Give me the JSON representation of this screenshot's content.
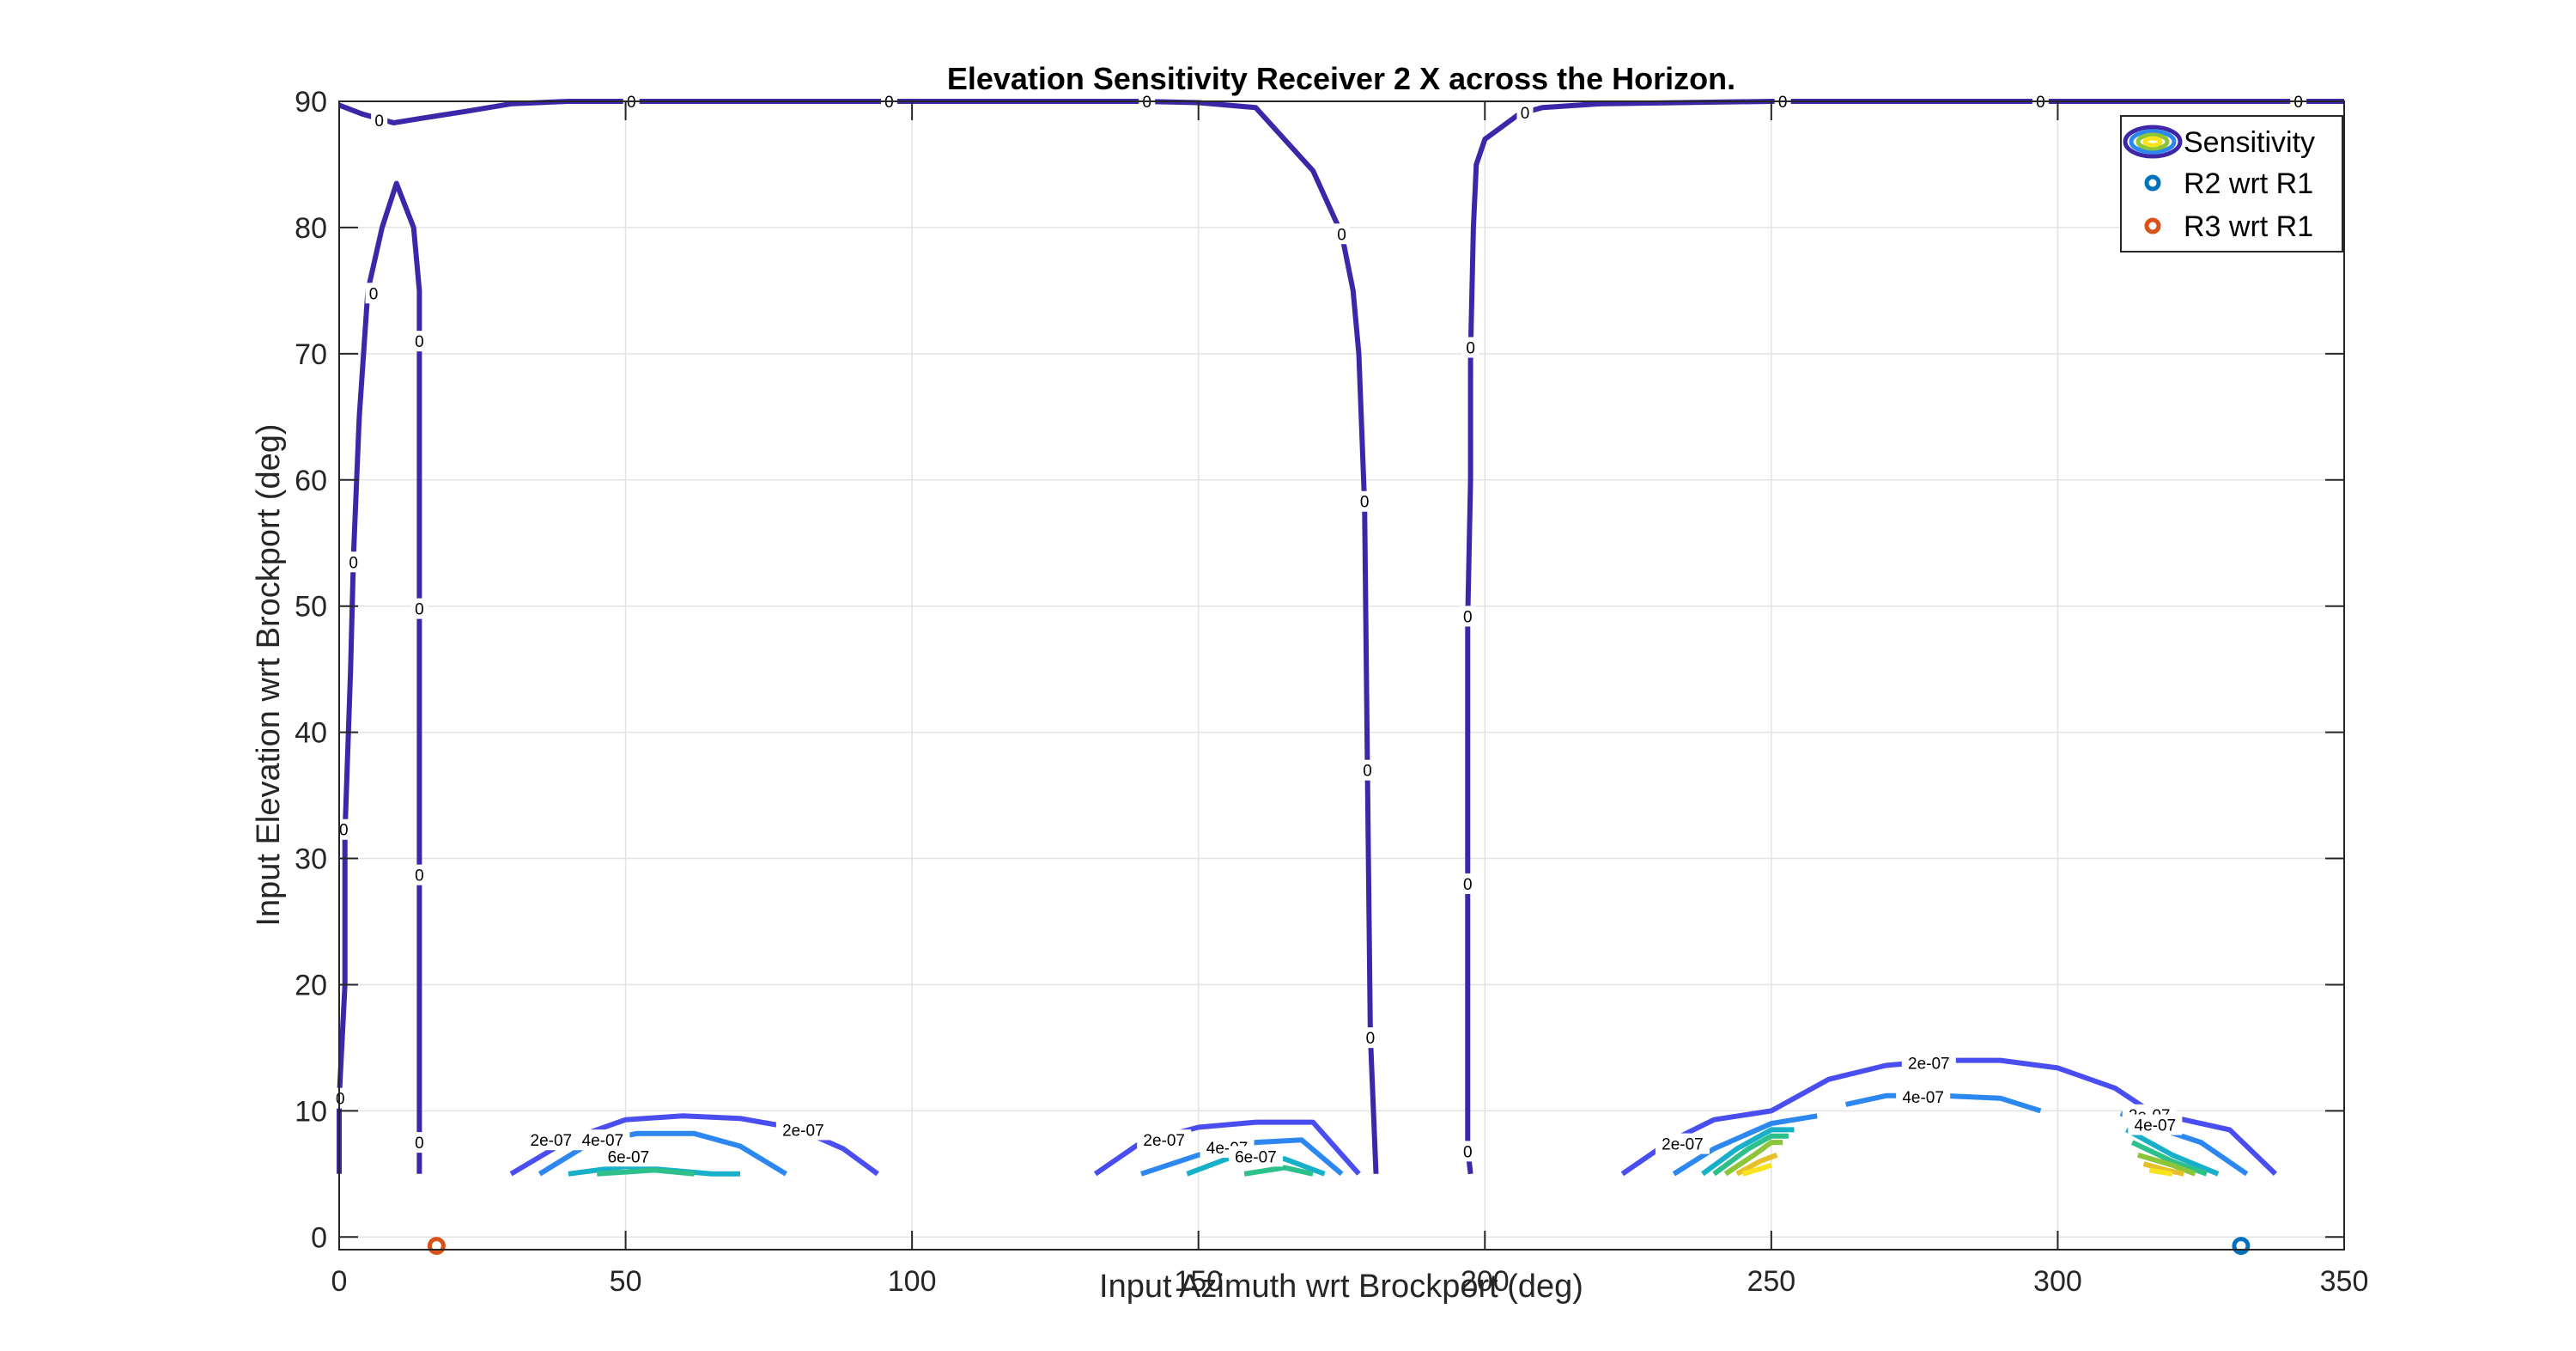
{
  "chart_data": {
    "type": "contour",
    "title": "Elevation Sensitivity Receiver 2 X across the Horizon.",
    "xlabel": "Input Azimuth wrt Brockport (deg)",
    "ylabel": "Input Elevation wrt Brockport (deg)",
    "xlim": [
      0,
      350
    ],
    "ylim": [
      -1,
      90
    ],
    "xticks": [
      0,
      50,
      100,
      150,
      200,
      250,
      300,
      350
    ],
    "yticks": [
      0,
      10,
      20,
      30,
      40,
      50,
      60,
      70,
      80,
      90
    ],
    "grid": true,
    "legend_position": "top-right",
    "legend": [
      {
        "label": "Sensitivity",
        "kind": "contour"
      },
      {
        "label": "R2 wrt R1",
        "kind": "marker",
        "color": "#0072BD"
      },
      {
        "label": "R3 wrt R1",
        "kind": "marker",
        "color": "#D95319"
      }
    ],
    "contour_levels": [
      {
        "value": 0,
        "label": "0",
        "color": "#3E26A8"
      },
      {
        "value": 2e-07,
        "label": "2e-07",
        "color": "#4A4EF0"
      },
      {
        "value": 4e-07,
        "label": "4e-07",
        "color": "#2C88F0"
      },
      {
        "value": 6e-07,
        "label": "6e-07",
        "color": "#18B0C8"
      },
      {
        "value": 8e-07,
        "label": "",
        "color": "#2DC08A"
      },
      {
        "value": 1e-06,
        "label": "",
        "color": "#8CC43A"
      },
      {
        "value": 1.2e-06,
        "label": "",
        "color": "#E6C02A"
      },
      {
        "value": 1.4e-06,
        "label": "",
        "color": "#F9E21E"
      }
    ],
    "contours": [
      {
        "level": 0,
        "points": [
          [
            0,
            5
          ],
          [
            0,
            11
          ],
          [
            1,
            20
          ],
          [
            1,
            32
          ],
          [
            2,
            45
          ],
          [
            2.5,
            54
          ],
          [
            3.5,
            65
          ],
          [
            5,
            75
          ],
          [
            7.5,
            80
          ],
          [
            10,
            83.5
          ],
          [
            13,
            80
          ],
          [
            14,
            75
          ],
          [
            14,
            71
          ],
          [
            14,
            60
          ],
          [
            14,
            50
          ],
          [
            14,
            40
          ],
          [
            14,
            28.5
          ],
          [
            14,
            20
          ],
          [
            14,
            10
          ],
          [
            14,
            7.5
          ],
          [
            14,
            5
          ]
        ]
      },
      {
        "level": 0,
        "points": [
          [
            0,
            89.7
          ],
          [
            4,
            89
          ],
          [
            9.5,
            88.3
          ],
          [
            15,
            88.7
          ],
          [
            22,
            89.2
          ],
          [
            30,
            89.8
          ],
          [
            40,
            90
          ],
          [
            60,
            90
          ],
          [
            100,
            90
          ],
          [
            140,
            90
          ],
          [
            150,
            89.9
          ],
          [
            160,
            89.5
          ],
          [
            170,
            84.5
          ],
          [
            175,
            79.5
          ],
          [
            177,
            75
          ],
          [
            178,
            70
          ],
          [
            179,
            58
          ],
          [
            179.5,
            37
          ],
          [
            180,
            16
          ],
          [
            181,
            5
          ]
        ]
      },
      {
        "level": 0,
        "points": [
          [
            197.5,
            5
          ],
          [
            197,
            7
          ],
          [
            197,
            11
          ],
          [
            197,
            20
          ],
          [
            197,
            28
          ],
          [
            197,
            40
          ],
          [
            197,
            49
          ],
          [
            197.5,
            60
          ],
          [
            197.5,
            70
          ],
          [
            198,
            80
          ],
          [
            198.5,
            85
          ],
          [
            200,
            87
          ],
          [
            203,
            88
          ],
          [
            206,
            89
          ],
          [
            210,
            89.5
          ],
          [
            220,
            89.8
          ],
          [
            250,
            90
          ],
          [
            300,
            90
          ],
          [
            350,
            90
          ]
        ]
      },
      {
        "level": 2e-07,
        "points": [
          [
            30,
            5
          ],
          [
            40,
            7.7
          ],
          [
            50,
            9.3
          ],
          [
            60,
            9.6
          ],
          [
            70,
            9.4
          ],
          [
            80,
            8.6
          ],
          [
            88,
            7
          ],
          [
            94,
            5
          ]
        ]
      },
      {
        "level": 4e-07,
        "points": [
          [
            35,
            5
          ],
          [
            44,
            7.5
          ],
          [
            52,
            8.2
          ],
          [
            62,
            8.2
          ],
          [
            70,
            7.2
          ],
          [
            78,
            5
          ]
        ]
      },
      {
        "level": 6e-07,
        "points": [
          [
            40,
            5
          ],
          [
            50,
            5.6
          ],
          [
            60,
            5.2
          ],
          [
            65,
            5
          ],
          [
            70,
            5
          ]
        ]
      },
      {
        "level": 8e-07,
        "points": [
          [
            45,
            5
          ],
          [
            55,
            5.3
          ],
          [
            62,
            5
          ]
        ]
      },
      {
        "level": 2e-07,
        "points": [
          [
            132,
            5
          ],
          [
            140,
            7.5
          ],
          [
            150,
            8.7
          ],
          [
            160,
            9.1
          ],
          [
            170,
            9.1
          ],
          [
            178,
            5
          ]
        ]
      },
      {
        "level": 4e-07,
        "points": [
          [
            140,
            5
          ],
          [
            150,
            6.5
          ],
          [
            160,
            7.5
          ],
          [
            168,
            7.7
          ],
          [
            175,
            5
          ]
        ]
      },
      {
        "level": 6e-07,
        "points": [
          [
            148,
            5
          ],
          [
            155,
            6.2
          ],
          [
            165,
            6.2
          ],
          [
            172,
            5
          ]
        ]
      },
      {
        "level": 8e-07,
        "points": [
          [
            158,
            5
          ],
          [
            165,
            5.5
          ],
          [
            170,
            5
          ]
        ]
      },
      {
        "level": 2e-07,
        "points": [
          [
            224,
            5
          ],
          [
            232,
            7.5
          ],
          [
            240,
            9.3
          ],
          [
            250,
            10
          ],
          [
            260,
            12.5
          ],
          [
            270,
            13.6
          ],
          [
            280,
            14
          ],
          [
            290,
            14
          ],
          [
            300,
            13.4
          ],
          [
            310,
            11.8
          ],
          [
            315,
            10.3
          ],
          [
            320,
            9.5
          ],
          [
            330,
            8.5
          ],
          [
            338,
            5
          ]
        ]
      },
      {
        "level": 4e-07,
        "points": [
          [
            233,
            5
          ],
          [
            240,
            7
          ],
          [
            250,
            9
          ],
          [
            258,
            9.6
          ]
        ]
      },
      {
        "level": 4e-07,
        "points": [
          [
            263,
            10.5
          ],
          [
            270,
            11.2
          ],
          [
            280,
            11.2
          ],
          [
            290,
            11
          ],
          [
            297,
            10
          ]
        ]
      },
      {
        "level": 4e-07,
        "points": [
          [
            311,
            9.8
          ],
          [
            317,
            8.7
          ],
          [
            325,
            7.5
          ],
          [
            333,
            5
          ]
        ]
      },
      {
        "level": 6e-07,
        "points": [
          [
            238,
            5
          ],
          [
            244,
            7
          ],
          [
            250,
            8.5
          ],
          [
            254,
            8.5
          ]
        ]
      },
      {
        "level": 6e-07,
        "points": [
          [
            312,
            8.5
          ],
          [
            320,
            6.5
          ],
          [
            328,
            5
          ]
        ]
      },
      {
        "level": 8e-07,
        "points": [
          [
            240,
            5
          ],
          [
            246,
            7
          ],
          [
            250,
            8
          ],
          [
            253,
            8
          ]
        ]
      },
      {
        "level": 8e-07,
        "points": [
          [
            313,
            7.5
          ],
          [
            320,
            6
          ],
          [
            326,
            5
          ]
        ]
      },
      {
        "level": 1e-06,
        "points": [
          [
            242,
            5
          ],
          [
            247,
            6.5
          ],
          [
            250,
            7.5
          ],
          [
            252,
            7.5
          ]
        ]
      },
      {
        "level": 1e-06,
        "points": [
          [
            314,
            6.5
          ],
          [
            320,
            5.7
          ],
          [
            324,
            5
          ]
        ]
      },
      {
        "level": 1.2e-06,
        "points": [
          [
            244,
            5
          ],
          [
            248,
            6
          ],
          [
            251,
            6.5
          ]
        ]
      },
      {
        "level": 1.2e-06,
        "points": [
          [
            315,
            5.8
          ],
          [
            319,
            5.3
          ],
          [
            322,
            5
          ]
        ]
      },
      {
        "level": 1.4e-06,
        "points": [
          [
            245,
            5
          ],
          [
            248,
            5.4
          ],
          [
            250,
            5.7
          ]
        ]
      },
      {
        "level": 1.4e-06,
        "points": [
          [
            316,
            5.3
          ],
          [
            320,
            5
          ]
        ]
      }
    ],
    "contour_labels": [
      {
        "text": "0",
        "x": 7,
        "y": 88.5
      },
      {
        "text": "0",
        "x": 51,
        "y": 90
      },
      {
        "text": "0",
        "x": 96,
        "y": 90
      },
      {
        "text": "0",
        "x": 141,
        "y": 90
      },
      {
        "text": "0",
        "x": 207,
        "y": 89.1
      },
      {
        "text": "0",
        "x": 252,
        "y": 90
      },
      {
        "text": "0",
        "x": 297,
        "y": 90
      },
      {
        "text": "0",
        "x": 342,
        "y": 90
      },
      {
        "text": "0",
        "x": 6,
        "y": 74.8
      },
      {
        "text": "0",
        "x": 2.5,
        "y": 53.5
      },
      {
        "text": "0",
        "x": 0.8,
        "y": 32.3
      },
      {
        "text": "0",
        "x": 0.2,
        "y": 11
      },
      {
        "text": "0",
        "x": 14,
        "y": 71
      },
      {
        "text": "0",
        "x": 14,
        "y": 49.8
      },
      {
        "text": "0",
        "x": 14,
        "y": 28.7
      },
      {
        "text": "0",
        "x": 14,
        "y": 7.5
      },
      {
        "text": "0",
        "x": 175,
        "y": 79.5
      },
      {
        "text": "0",
        "x": 179,
        "y": 58.3
      },
      {
        "text": "0",
        "x": 179.5,
        "y": 37
      },
      {
        "text": "0",
        "x": 180,
        "y": 15.8
      },
      {
        "text": "0",
        "x": 197.5,
        "y": 70.5
      },
      {
        "text": "0",
        "x": 197,
        "y": 49.2
      },
      {
        "text": "0",
        "x": 197,
        "y": 28
      },
      {
        "text": "0",
        "x": 197,
        "y": 6.8
      },
      {
        "text": "2e-07",
        "x": 37,
        "y": 7.7
      },
      {
        "text": "2e-07",
        "x": 81,
        "y": 8.5
      },
      {
        "text": "4e-07",
        "x": 46,
        "y": 7.7
      },
      {
        "text": "6e-07",
        "x": 50.5,
        "y": 6.4
      },
      {
        "text": "2e-07",
        "x": 144,
        "y": 7.7
      },
      {
        "text": "4e-07",
        "x": 155,
        "y": 7.1
      },
      {
        "text": "6e-07",
        "x": 160,
        "y": 6.4
      },
      {
        "text": "2e-07",
        "x": 234.5,
        "y": 7.4
      },
      {
        "text": "2e-07",
        "x": 277.5,
        "y": 13.8
      },
      {
        "text": "4e-07",
        "x": 276.5,
        "y": 11.1
      },
      {
        "text": "2e-07",
        "x": 316,
        "y": 9.7
      },
      {
        "text": "4e-07",
        "x": 317,
        "y": 8.9
      }
    ],
    "markers": [
      {
        "series": "R2 wrt R1",
        "x": 332,
        "y": -0.7,
        "color": "#0072BD"
      },
      {
        "series": "R3 wrt R1",
        "x": 17,
        "y": -0.7,
        "color": "#D95319"
      }
    ]
  }
}
